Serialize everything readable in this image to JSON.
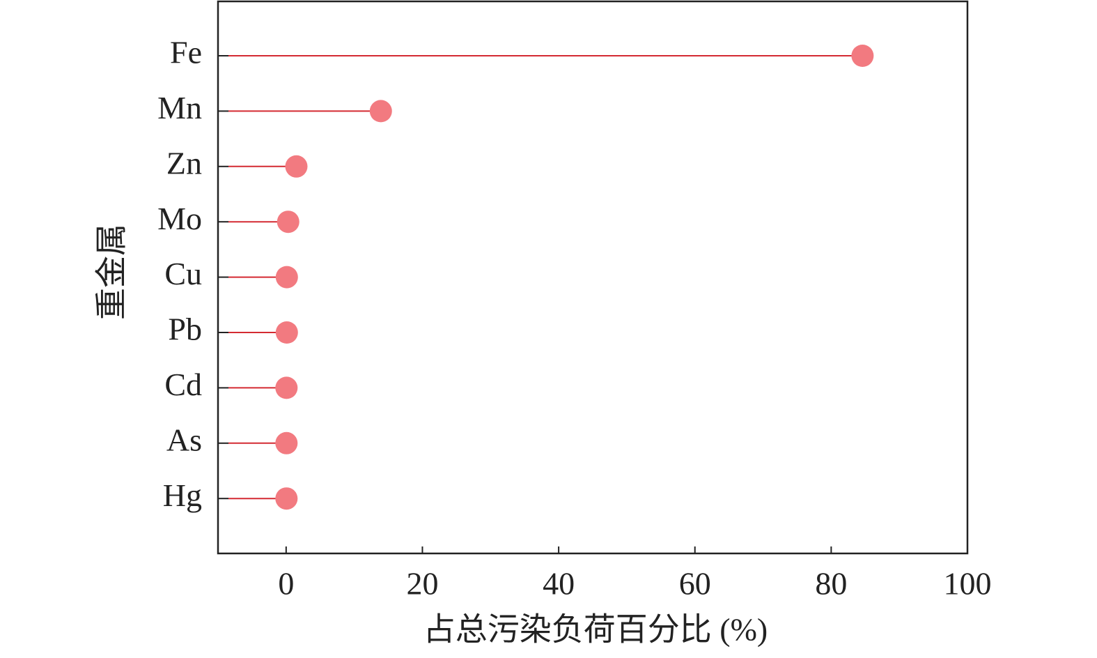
{
  "chart_data": {
    "type": "lollipop",
    "orientation": "horizontal",
    "x_label": "占总污染负荷百分比 (%)",
    "y_label": "重金属",
    "categories": [
      "Fe",
      "Mn",
      "Zn",
      "Mo",
      "Cu",
      "Pb",
      "Cd",
      "As",
      "Hg"
    ],
    "values": [
      84.6,
      13.9,
      1.5,
      0.3,
      0.1,
      0.1,
      0.05,
      0.05,
      0.05
    ],
    "stem_color": "#d42a32",
    "marker_color": "#f27a80",
    "xlim": [
      -10,
      100
    ],
    "xticks": [
      0,
      20,
      40,
      60,
      80,
      100
    ]
  }
}
